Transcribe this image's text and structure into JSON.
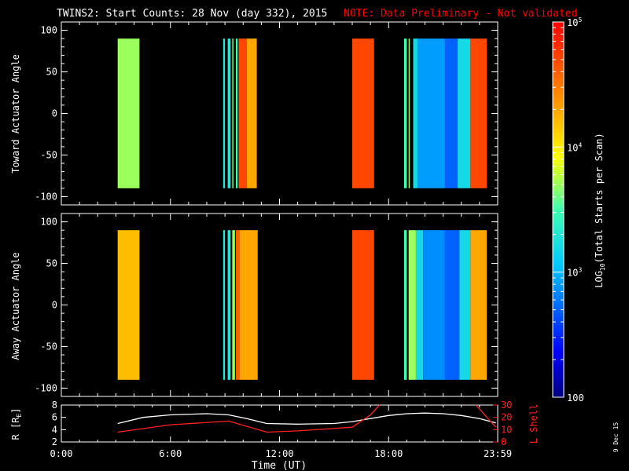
{
  "title_main": "TWINS2: Start Counts: 28 Nov (day 332), 2015",
  "title_note": "NOTE: Data Preliminary - Not validated",
  "colors": {
    "background": "#000000",
    "axes": "#ffffff",
    "note": "#ff0000",
    "r_line": "#ffffff",
    "lshell_line": "#ff2020"
  },
  "chart_data": [
    {
      "type": "heatmap",
      "ylabel": "Toward Actuator Angle",
      "ylim": [
        -110,
        110
      ],
      "yticks": [
        "100",
        "50",
        "0",
        "-50",
        "-100"
      ],
      "xlim_hours": [
        0,
        24
      ],
      "data_angle_range": [
        -90,
        90
      ],
      "bands": [
        {
          "start": 3.1,
          "end": 4.3,
          "level": 3.7
        },
        {
          "start": 8.9,
          "end": 9.0,
          "level": 3.3
        },
        {
          "start": 9.15,
          "end": 9.3,
          "level": 3.3
        },
        {
          "start": 9.4,
          "end": 9.45,
          "level": 3.6
        },
        {
          "start": 9.6,
          "end": 9.7,
          "level": 3.5
        },
        {
          "start": 9.75,
          "end": 10.2,
          "level": 4.7
        },
        {
          "start": 10.2,
          "end": 10.75,
          "level": 4.3
        },
        {
          "start": 16.0,
          "end": 17.2,
          "level": 4.7
        },
        {
          "start": 18.85,
          "end": 19.0,
          "level": 3.5
        },
        {
          "start": 19.1,
          "end": 19.15,
          "level": 3.7
        },
        {
          "start": 19.35,
          "end": 19.6,
          "level": 3.2
        },
        {
          "start": 19.6,
          "end": 21.1,
          "level": 2.9
        },
        {
          "start": 21.1,
          "end": 21.8,
          "level": 2.7
        },
        {
          "start": 21.8,
          "end": 22.5,
          "level": 3.2
        },
        {
          "start": 22.5,
          "end": 23.4,
          "level": 4.7
        }
      ]
    },
    {
      "type": "heatmap",
      "ylabel": "Away Actuator Angle",
      "ylim": [
        -110,
        110
      ],
      "yticks": [
        "100",
        "50",
        "0",
        "-50",
        "-100"
      ],
      "xlim_hours": [
        0,
        24
      ],
      "data_angle_range": [
        -90,
        90
      ],
      "bands": [
        {
          "start": 3.1,
          "end": 4.3,
          "level": 4.2
        },
        {
          "start": 8.9,
          "end": 9.0,
          "level": 3.3
        },
        {
          "start": 9.15,
          "end": 9.3,
          "level": 3.3
        },
        {
          "start": 9.4,
          "end": 9.55,
          "level": 3.7
        },
        {
          "start": 9.6,
          "end": 9.8,
          "level": 4.6
        },
        {
          "start": 9.8,
          "end": 10.8,
          "level": 4.3
        },
        {
          "start": 16.0,
          "end": 17.2,
          "level": 4.7
        },
        {
          "start": 18.85,
          "end": 19.0,
          "level": 3.5
        },
        {
          "start": 19.1,
          "end": 19.5,
          "level": 3.7
        },
        {
          "start": 19.5,
          "end": 19.9,
          "level": 3.2
        },
        {
          "start": 19.9,
          "end": 21.1,
          "level": 2.85
        },
        {
          "start": 21.1,
          "end": 21.9,
          "level": 2.7
        },
        {
          "start": 21.9,
          "end": 22.5,
          "level": 3.2
        },
        {
          "start": 22.5,
          "end": 23.4,
          "level": 4.3
        }
      ]
    },
    {
      "type": "line",
      "xlabel": "Time (UT)",
      "xticks": [
        "0:00",
        "6:00",
        "12:00",
        "18:00",
        "23:59"
      ],
      "xtick_hours": [
        0,
        6,
        12,
        18,
        24
      ],
      "ylabel_left": "R [R",
      "ylabel_left_sub": "E",
      "ylabel_left_end": "]",
      "ylim_left": [
        2,
        8
      ],
      "yticks_left": [
        "8",
        "6",
        "4",
        "2"
      ],
      "ylabel_right": "L Shell",
      "ylim_right": [
        0,
        30
      ],
      "yticks_right": [
        "30",
        "20",
        "10",
        "0"
      ],
      "series": [
        {
          "axis": "left",
          "x": [
            3.1,
            4.5,
            6,
            8,
            9.2,
            10.2,
            11.3,
            13,
            15,
            16,
            17,
            18,
            19,
            20,
            21,
            22,
            23,
            23.9
          ],
          "y": [
            5.0,
            6.0,
            6.4,
            6.6,
            6.4,
            5.8,
            5.0,
            4.9,
            5.0,
            5.3,
            5.8,
            6.3,
            6.6,
            6.7,
            6.6,
            6.3,
            5.8,
            5.1
          ]
        },
        {
          "axis": "right",
          "x": [
            3.1,
            6,
            9.2,
            11.3,
            13,
            16,
            17,
            17.5
          ],
          "y": [
            8,
            14,
            17,
            8,
            9,
            12,
            22,
            30
          ]
        },
        {
          "axis": "right",
          "x": [
            22.8,
            23.9
          ],
          "y": [
            30,
            12
          ]
        }
      ]
    }
  ],
  "colorbar": {
    "label": "LOG",
    "label_sub": "10",
    "label_end": "(Total Starts per Scan)",
    "range": [
      2,
      5
    ],
    "ticks": [
      {
        "value": 5,
        "base": "10",
        "exp": "5"
      },
      {
        "value": 4,
        "base": "10",
        "exp": "4"
      },
      {
        "value": 3,
        "base": "10",
        "exp": "3"
      },
      {
        "value": 2,
        "base": "100",
        "exp": ""
      }
    ]
  },
  "date_stamp": "9 Dec 15"
}
